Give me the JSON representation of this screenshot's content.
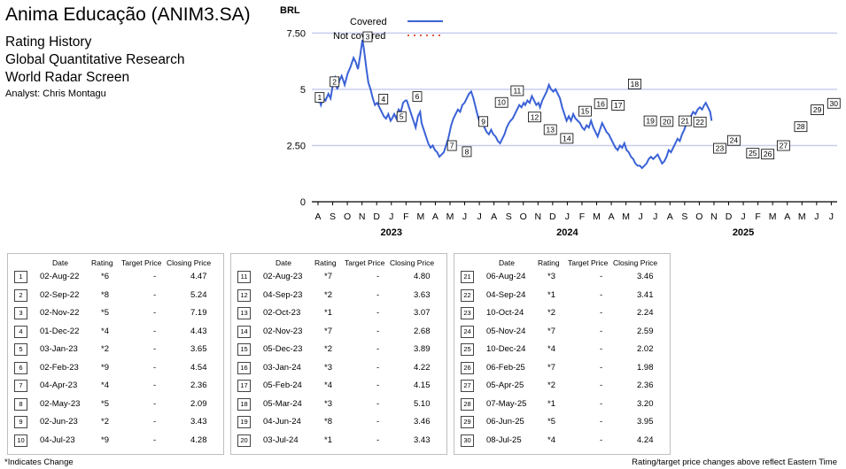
{
  "header": {
    "title": "Anima Educação (ANIM3.SA)",
    "line1": "Rating History",
    "line2": "Global Quantitative Research",
    "line3": "World Radar Screen",
    "analyst": "Analyst: Chris Montagu"
  },
  "chart_data": {
    "type": "line",
    "ylabel": "BRL",
    "ylim": [
      0,
      8.5
    ],
    "yticks": [
      {
        "v": 0,
        "label": "0"
      },
      {
        "v": 2.5,
        "label": "2.50"
      },
      {
        "v": 5,
        "label": "5"
      },
      {
        "v": 7.5,
        "label": "7.50"
      }
    ],
    "grid": true,
    "legend": {
      "position": "top",
      "covered_label": "Covered",
      "not_covered_label": "Not covered",
      "covered_color": "#3b62d6",
      "not_covered_color": "#e05a3a"
    },
    "month_labels": [
      "A",
      "S",
      "O",
      "N",
      "D",
      "J",
      "F",
      "M",
      "A",
      "M",
      "J",
      "J",
      "A",
      "S",
      "O",
      "N",
      "D",
      "J",
      "F",
      "M",
      "A",
      "M",
      "J",
      "J",
      "A",
      "S",
      "O",
      "N",
      "D",
      "J",
      "F",
      "M",
      "A",
      "M",
      "J",
      "J"
    ],
    "year_labels": [
      {
        "label": "2023",
        "month_index": 5
      },
      {
        "label": "2024",
        "month_index": 17
      },
      {
        "label": "2025",
        "month_index": 29
      }
    ],
    "series": [
      {
        "points": [
          [
            0,
            4.4
          ],
          [
            0.1,
            4.5
          ],
          [
            0.2,
            4.3
          ],
          [
            0.35,
            4.6
          ],
          [
            0.5,
            4.5
          ],
          [
            0.7,
            4.8
          ],
          [
            0.85,
            4.6
          ],
          [
            1,
            5.2
          ],
          [
            1.15,
            5.5
          ],
          [
            1.3,
            5.0
          ],
          [
            1.45,
            5.4
          ],
          [
            1.6,
            5.6
          ],
          [
            1.8,
            5.2
          ],
          [
            2,
            5.7
          ],
          [
            2.2,
            6.0
          ],
          [
            2.4,
            6.4
          ],
          [
            2.55,
            6.2
          ],
          [
            2.7,
            5.9
          ],
          [
            2.85,
            6.5
          ],
          [
            3.0,
            7.2
          ],
          [
            3.1,
            6.8
          ],
          [
            3.25,
            6.0
          ],
          [
            3.4,
            5.3
          ],
          [
            3.55,
            5.0
          ],
          [
            3.7,
            4.6
          ],
          [
            3.85,
            4.3
          ],
          [
            4,
            4.4
          ],
          [
            4.15,
            4.2
          ],
          [
            4.3,
            4.0
          ],
          [
            4.45,
            3.8
          ],
          [
            4.6,
            3.7
          ],
          [
            4.75,
            3.9
          ],
          [
            4.9,
            3.6
          ],
          [
            5,
            3.7
          ],
          [
            5.15,
            3.9
          ],
          [
            5.3,
            3.7
          ],
          [
            5.45,
            4.1
          ],
          [
            5.6,
            4.0
          ],
          [
            5.75,
            4.4
          ],
          [
            5.9,
            4.5
          ],
          [
            6,
            4.5
          ],
          [
            6.15,
            4.2
          ],
          [
            6.3,
            3.9
          ],
          [
            6.45,
            3.6
          ],
          [
            6.6,
            3.3
          ],
          [
            6.75,
            3.8
          ],
          [
            6.9,
            4.0
          ],
          [
            7,
            3.5
          ],
          [
            7.15,
            3.2
          ],
          [
            7.3,
            2.9
          ],
          [
            7.45,
            2.6
          ],
          [
            7.6,
            2.4
          ],
          [
            7.75,
            2.5
          ],
          [
            7.9,
            2.3
          ],
          [
            8.05,
            2.2
          ],
          [
            8.2,
            2.0
          ],
          [
            8.35,
            2.1
          ],
          [
            8.5,
            2.2
          ],
          [
            8.65,
            2.5
          ],
          [
            8.8,
            2.8
          ],
          [
            9,
            3.4
          ],
          [
            9.15,
            3.7
          ],
          [
            9.3,
            3.9
          ],
          [
            9.45,
            4.1
          ],
          [
            9.6,
            4.0
          ],
          [
            9.75,
            4.3
          ],
          [
            9.9,
            4.4
          ],
          [
            10.05,
            4.6
          ],
          [
            10.2,
            4.8
          ],
          [
            10.35,
            4.9
          ],
          [
            10.5,
            4.6
          ],
          [
            10.65,
            4.2
          ],
          [
            10.8,
            3.8
          ],
          [
            10.95,
            3.5
          ],
          [
            11.1,
            3.7
          ],
          [
            11.25,
            3.3
          ],
          [
            11.4,
            3.1
          ],
          [
            11.55,
            3.0
          ],
          [
            11.7,
            3.2
          ],
          [
            11.85,
            3.0
          ],
          [
            12,
            2.9
          ],
          [
            12.15,
            2.7
          ],
          [
            12.3,
            2.6
          ],
          [
            12.45,
            2.8
          ],
          [
            12.6,
            3.0
          ],
          [
            12.75,
            3.3
          ],
          [
            12.9,
            3.5
          ],
          [
            13,
            3.6
          ],
          [
            13.15,
            3.7
          ],
          [
            13.3,
            3.9
          ],
          [
            13.45,
            4.1
          ],
          [
            13.6,
            4.3
          ],
          [
            13.75,
            4.2
          ],
          [
            13.9,
            4.4
          ],
          [
            14,
            4.3
          ],
          [
            14.15,
            4.5
          ],
          [
            14.3,
            4.4
          ],
          [
            14.45,
            4.7
          ],
          [
            14.6,
            4.5
          ],
          [
            14.75,
            4.3
          ],
          [
            14.9,
            4.4
          ],
          [
            15,
            4.2
          ],
          [
            15.15,
            4.5
          ],
          [
            15.3,
            4.7
          ],
          [
            15.45,
            4.9
          ],
          [
            15.6,
            5.2
          ],
          [
            15.75,
            5.0
          ],
          [
            15.9,
            4.9
          ],
          [
            16.05,
            5.0
          ],
          [
            16.2,
            4.8
          ],
          [
            16.35,
            4.6
          ],
          [
            16.5,
            4.2
          ],
          [
            16.65,
            3.9
          ],
          [
            16.8,
            3.6
          ],
          [
            16.95,
            3.8
          ],
          [
            17.1,
            3.6
          ],
          [
            17.25,
            3.9
          ],
          [
            17.4,
            3.7
          ],
          [
            17.55,
            3.6
          ],
          [
            17.7,
            3.5
          ],
          [
            17.85,
            3.3
          ],
          [
            18,
            3.2
          ],
          [
            18.15,
            3.4
          ],
          [
            18.3,
            3.3
          ],
          [
            18.45,
            3.6
          ],
          [
            18.6,
            3.3
          ],
          [
            18.75,
            3.1
          ],
          [
            18.9,
            2.9
          ],
          [
            19.05,
            3.2
          ],
          [
            19.2,
            3.5
          ],
          [
            19.35,
            3.3
          ],
          [
            19.5,
            3.1
          ],
          [
            19.65,
            3.0
          ],
          [
            19.8,
            2.8
          ],
          [
            19.95,
            2.6
          ],
          [
            20.1,
            2.4
          ],
          [
            20.25,
            2.3
          ],
          [
            20.4,
            2.5
          ],
          [
            20.55,
            2.4
          ],
          [
            20.7,
            2.6
          ],
          [
            20.85,
            2.3
          ],
          [
            21,
            2.2
          ],
          [
            21.15,
            2.0
          ],
          [
            21.3,
            1.9
          ],
          [
            21.45,
            1.7
          ],
          [
            21.6,
            1.6
          ],
          [
            21.75,
            1.6
          ],
          [
            21.9,
            1.5
          ],
          [
            22.05,
            1.6
          ],
          [
            22.2,
            1.7
          ],
          [
            22.35,
            1.9
          ],
          [
            22.5,
            2.0
          ],
          [
            22.65,
            1.9
          ],
          [
            22.8,
            2.0
          ],
          [
            22.95,
            2.1
          ],
          [
            23.1,
            1.9
          ],
          [
            23.25,
            1.7
          ],
          [
            23.4,
            1.8
          ],
          [
            23.55,
            2.0
          ],
          [
            23.7,
            2.3
          ],
          [
            23.85,
            2.2
          ],
          [
            24,
            2.4
          ],
          [
            24.15,
            2.6
          ],
          [
            24.3,
            2.8
          ],
          [
            24.45,
            2.7
          ],
          [
            24.6,
            3.0
          ],
          [
            24.75,
            3.2
          ],
          [
            24.9,
            3.5
          ],
          [
            25.05,
            3.7
          ],
          [
            25.2,
            3.8
          ],
          [
            25.35,
            4.0
          ],
          [
            25.5,
            3.9
          ],
          [
            25.65,
            4.1
          ],
          [
            25.8,
            4.2
          ],
          [
            25.95,
            4.1
          ],
          [
            26.1,
            4.3
          ],
          [
            26.2,
            4.4
          ],
          [
            26.35,
            4.2
          ],
          [
            26.5,
            4.0
          ],
          [
            26.6,
            3.6
          ]
        ]
      }
    ],
    "markers": [
      {
        "n": "1",
        "x": 0.1,
        "y": 4.5
      },
      {
        "n": "2",
        "x": 1.0,
        "y": 5.2
      },
      {
        "n": "3",
        "x": 3.0,
        "y": 7.2
      },
      {
        "n": "4",
        "x": 3.95,
        "y": 4.43
      },
      {
        "n": "5",
        "x": 5.05,
        "y": 3.65
      },
      {
        "n": "6",
        "x": 6.0,
        "y": 4.54
      },
      {
        "n": "7",
        "x": 8.1,
        "y": 2.36
      },
      {
        "n": "8",
        "x": 9.0,
        "y": 2.09
      },
      {
        "n": "9",
        "x": 10.0,
        "y": 3.43
      },
      {
        "n": "10",
        "x": 11.1,
        "y": 4.28
      },
      {
        "n": "11",
        "x": 12.05,
        "y": 4.8
      },
      {
        "n": "12",
        "x": 13.1,
        "y": 3.63
      },
      {
        "n": "13",
        "x": 14.05,
        "y": 3.07
      },
      {
        "n": "14",
        "x": 15.05,
        "y": 2.68
      },
      {
        "n": "15",
        "x": 16.15,
        "y": 3.89
      },
      {
        "n": "16",
        "x": 17.1,
        "y": 4.22
      },
      {
        "n": "17",
        "x": 18.15,
        "y": 4.15
      },
      {
        "n": "18",
        "x": 19.15,
        "y": 5.1
      },
      {
        "n": "19",
        "x": 20.1,
        "y": 3.46
      },
      {
        "n": "20",
        "x": 21.1,
        "y": 3.43
      },
      {
        "n": "21",
        "x": 22.2,
        "y": 3.46
      },
      {
        "n": "22",
        "x": 23.1,
        "y": 3.41
      },
      {
        "n": "23",
        "x": 24.3,
        "y": 2.24
      },
      {
        "n": "24",
        "x": 25.15,
        "y": 2.59
      },
      {
        "n": "25",
        "x": 26.3,
        "y": 2.02
      },
      {
        "n": "26",
        "x": 27.2,
        "y": 1.98
      },
      {
        "n": "27",
        "x": 28.15,
        "y": 2.36
      },
      {
        "n": "28",
        "x": 29.2,
        "y": 3.2
      },
      {
        "n": "29",
        "x": 30.2,
        "y": 3.95
      },
      {
        "n": "30",
        "x": 31.2,
        "y": 4.24
      }
    ]
  },
  "table": {
    "headers": {
      "date": "Date",
      "rating": "Rating",
      "target": "Target Price",
      "closing": "Closing Price"
    },
    "panels": [
      {
        "rows": [
          {
            "n": "1",
            "date": "02-Aug-22",
            "rating": "*6",
            "target": "-",
            "closing": "4.47"
          },
          {
            "n": "2",
            "date": "02-Sep-22",
            "rating": "*8",
            "target": "-",
            "closing": "5.24"
          },
          {
            "n": "3",
            "date": "02-Nov-22",
            "rating": "*5",
            "target": "-",
            "closing": "7.19"
          },
          {
            "n": "4",
            "date": "01-Dec-22",
            "rating": "*4",
            "target": "-",
            "closing": "4.43"
          },
          {
            "n": "5",
            "date": "03-Jan-23",
            "rating": "*2",
            "target": "-",
            "closing": "3.65"
          },
          {
            "n": "6",
            "date": "02-Feb-23",
            "rating": "*9",
            "target": "-",
            "closing": "4.54"
          },
          {
            "n": "7",
            "date": "04-Apr-23",
            "rating": "*4",
            "target": "-",
            "closing": "2.36"
          },
          {
            "n": "8",
            "date": "02-May-23",
            "rating": "*5",
            "target": "-",
            "closing": "2.09"
          },
          {
            "n": "9",
            "date": "02-Jun-23",
            "rating": "*2",
            "target": "-",
            "closing": "3.43"
          },
          {
            "n": "10",
            "date": "04-Jul-23",
            "rating": "*9",
            "target": "-",
            "closing": "4.28"
          }
        ]
      },
      {
        "rows": [
          {
            "n": "11",
            "date": "02-Aug-23",
            "rating": "*7",
            "target": "-",
            "closing": "4.80"
          },
          {
            "n": "12",
            "date": "04-Sep-23",
            "rating": "*2",
            "target": "-",
            "closing": "3.63"
          },
          {
            "n": "13",
            "date": "02-Oct-23",
            "rating": "*1",
            "target": "-",
            "closing": "3.07"
          },
          {
            "n": "14",
            "date": "02-Nov-23",
            "rating": "*7",
            "target": "-",
            "closing": "2.68"
          },
          {
            "n": "15",
            "date": "05-Dec-23",
            "rating": "*2",
            "target": "-",
            "closing": "3.89"
          },
          {
            "n": "16",
            "date": "03-Jan-24",
            "rating": "*3",
            "target": "-",
            "closing": "4.22"
          },
          {
            "n": "17",
            "date": "05-Feb-24",
            "rating": "*4",
            "target": "-",
            "closing": "4.15"
          },
          {
            "n": "18",
            "date": "05-Mar-24",
            "rating": "*3",
            "target": "-",
            "closing": "5.10"
          },
          {
            "n": "19",
            "date": "04-Jun-24",
            "rating": "*8",
            "target": "-",
            "closing": "3.46"
          },
          {
            "n": "20",
            "date": "03-Jul-24",
            "rating": "*1",
            "target": "-",
            "closing": "3.43"
          }
        ]
      },
      {
        "rows": [
          {
            "n": "21",
            "date": "06-Aug-24",
            "rating": "*3",
            "target": "-",
            "closing": "3.46"
          },
          {
            "n": "22",
            "date": "04-Sep-24",
            "rating": "*1",
            "target": "-",
            "closing": "3.41"
          },
          {
            "n": "23",
            "date": "10-Oct-24",
            "rating": "*2",
            "target": "-",
            "closing": "2.24"
          },
          {
            "n": "24",
            "date": "05-Nov-24",
            "rating": "*7",
            "target": "-",
            "closing": "2.59"
          },
          {
            "n": "25",
            "date": "10-Dec-24",
            "rating": "*4",
            "target": "-",
            "closing": "2.02"
          },
          {
            "n": "26",
            "date": "06-Feb-25",
            "rating": "*7",
            "target": "-",
            "closing": "1.98"
          },
          {
            "n": "27",
            "date": "05-Apr-25",
            "rating": "*2",
            "target": "-",
            "closing": "2.36"
          },
          {
            "n": "28",
            "date": "07-May-25",
            "rating": "*1",
            "target": "-",
            "closing": "3.20"
          },
          {
            "n": "29",
            "date": "06-Jun-25",
            "rating": "*5",
            "target": "-",
            "closing": "3.95"
          },
          {
            "n": "30",
            "date": "08-Jul-25",
            "rating": "*4",
            "target": "-",
            "closing": "4.24"
          }
        ]
      }
    ]
  },
  "footer": {
    "left": "*Indicates Change",
    "right": "Rating/target price changes above reflect Eastern Time"
  }
}
